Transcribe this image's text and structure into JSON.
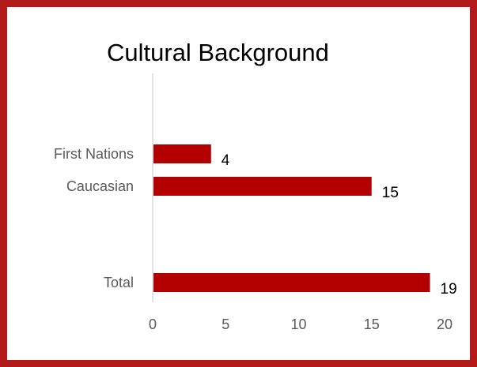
{
  "colors": {
    "border": "#b31b1b",
    "bar": "#b30000",
    "axis": "#d9d9d9",
    "label": "#595959"
  },
  "chart_data": {
    "type": "bar",
    "orientation": "horizontal",
    "title": "Cultural Background",
    "xlabel": "",
    "ylabel": "",
    "categories": [
      "First Nations",
      "Caucasian",
      "",
      "Total"
    ],
    "values": [
      4,
      15,
      null,
      19
    ],
    "data_labels": [
      "4",
      "15",
      "",
      "19"
    ],
    "xlim": [
      0,
      20
    ],
    "xticks": [
      "0",
      "5",
      "10",
      "15",
      "20"
    ],
    "grid": false,
    "legend": "none"
  }
}
